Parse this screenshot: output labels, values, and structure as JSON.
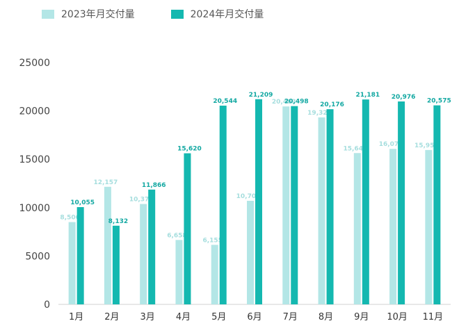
{
  "chart_data": {
    "type": "bar",
    "title": "",
    "xlabel": "",
    "ylabel": "",
    "ylim": [
      0,
      25000
    ],
    "yticks": [
      0,
      5000,
      10000,
      15000,
      20000,
      25000
    ],
    "ytick_labels": [
      "0",
      "5000",
      "10000",
      "15000",
      "20000",
      "25000"
    ],
    "grid": false,
    "legend_position": "top-left",
    "categories": [
      "1月",
      "2月",
      "3月",
      "4月",
      "5月",
      "6月",
      "7月",
      "8月",
      "9月",
      "10月",
      "11月"
    ],
    "series": [
      {
        "name": "2023年月交付量",
        "color": "#b3e6e6",
        "label_color": "#a6dede",
        "values": [
          8506,
          12157,
          10378,
          6658,
          6155,
          10707,
          20463,
          19329,
          15642,
          16074,
          15959
        ],
        "labels": [
          "8,506",
          "12,157",
          "10,378",
          "6,658",
          "6,155",
          "10,707",
          "20,463",
          "19,329",
          "15,642",
          "16,074",
          "15,959"
        ]
      },
      {
        "name": "2024年月交付量",
        "color": "#14b8b0",
        "label_color": "#13a8a2",
        "values": [
          10055,
          8132,
          11866,
          15620,
          20544,
          21209,
          20498,
          20176,
          21181,
          20976,
          20575
        ],
        "labels": [
          "10,055",
          "8,132",
          "11,866",
          "15,620",
          "20,544",
          "21,209",
          "20,498",
          "20,176",
          "21,181",
          "20,976",
          "20,575"
        ]
      }
    ]
  }
}
